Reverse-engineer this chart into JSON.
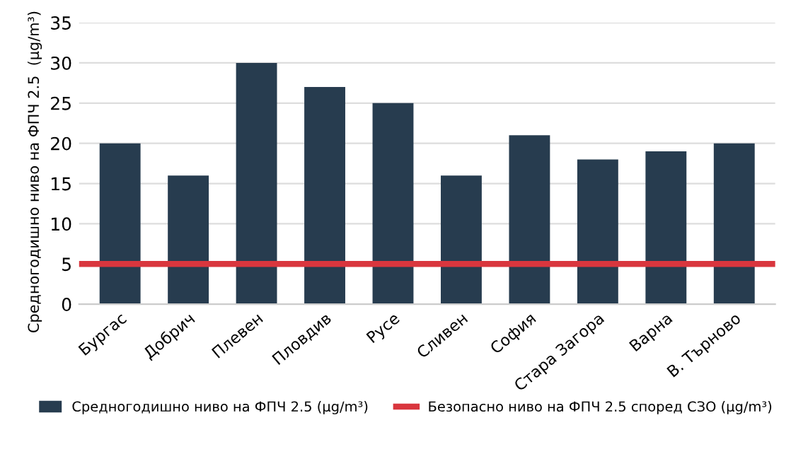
{
  "chart_data": {
    "type": "bar",
    "ylabel": "Средногодишно ниво на ФПЧ 2.5  (µg/m³)",
    "categories": [
      "Бургас",
      "Добрич",
      "Плевен",
      "Пловдив",
      "Русе",
      "Сливен",
      "София",
      "Стара Загора",
      "Варна",
      "В. Търново"
    ],
    "series": [
      {
        "name": "Средногодишно ниво на ФПЧ 2.5 (µg/m³)",
        "color": "#273c4f",
        "values": [
          20,
          16,
          30,
          27,
          25,
          16,
          21,
          18,
          19,
          20
        ]
      }
    ],
    "ref_lines": [
      {
        "axis": "y",
        "value": 5,
        "label": "Безопасно ниво на ФПЧ 2.5 според СЗО (µg/m³)",
        "color": "#d9363e",
        "line_style": "solid"
      }
    ],
    "ylim": [
      0,
      35
    ],
    "yticks": [
      0,
      5,
      10,
      15,
      20,
      25,
      30,
      35
    ],
    "grid": "y",
    "legend": "bottom"
  }
}
